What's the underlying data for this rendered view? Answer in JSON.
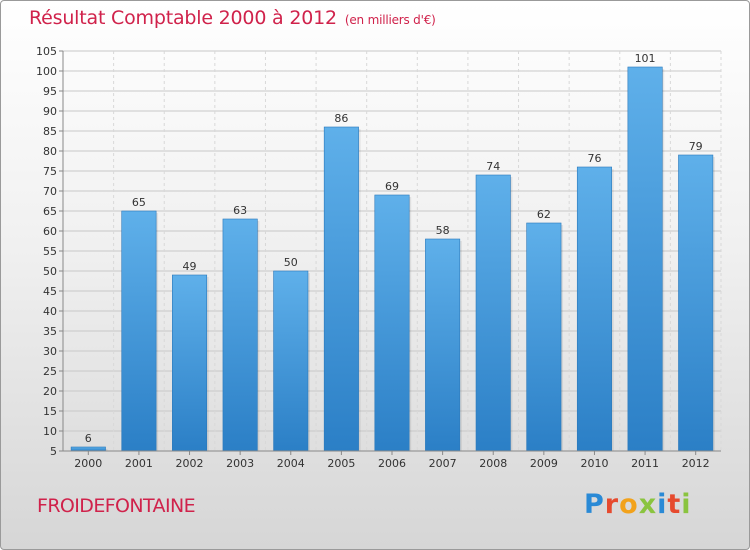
{
  "chart_data": {
    "type": "bar",
    "title": "Résultat Comptable 2000 à 2012",
    "subtitle": "(en milliers d'€)",
    "categories": [
      "2000",
      "2001",
      "2002",
      "2003",
      "2004",
      "2005",
      "2006",
      "2007",
      "2008",
      "2009",
      "2010",
      "2011",
      "2012"
    ],
    "values": [
      6,
      65,
      49,
      63,
      50,
      86,
      69,
      58,
      74,
      62,
      76,
      101,
      79
    ],
    "ylim": [
      5,
      105
    ],
    "yticks": [
      5,
      10,
      15,
      20,
      25,
      30,
      35,
      40,
      45,
      50,
      55,
      60,
      65,
      70,
      75,
      80,
      85,
      90,
      95,
      100,
      105
    ],
    "xlabel": "",
    "ylabel": "",
    "grid": true,
    "bar_color": "#3f97d8"
  },
  "footer": {
    "commune": "FROIDEFONTAINE",
    "logo_text": "Proxiti"
  }
}
